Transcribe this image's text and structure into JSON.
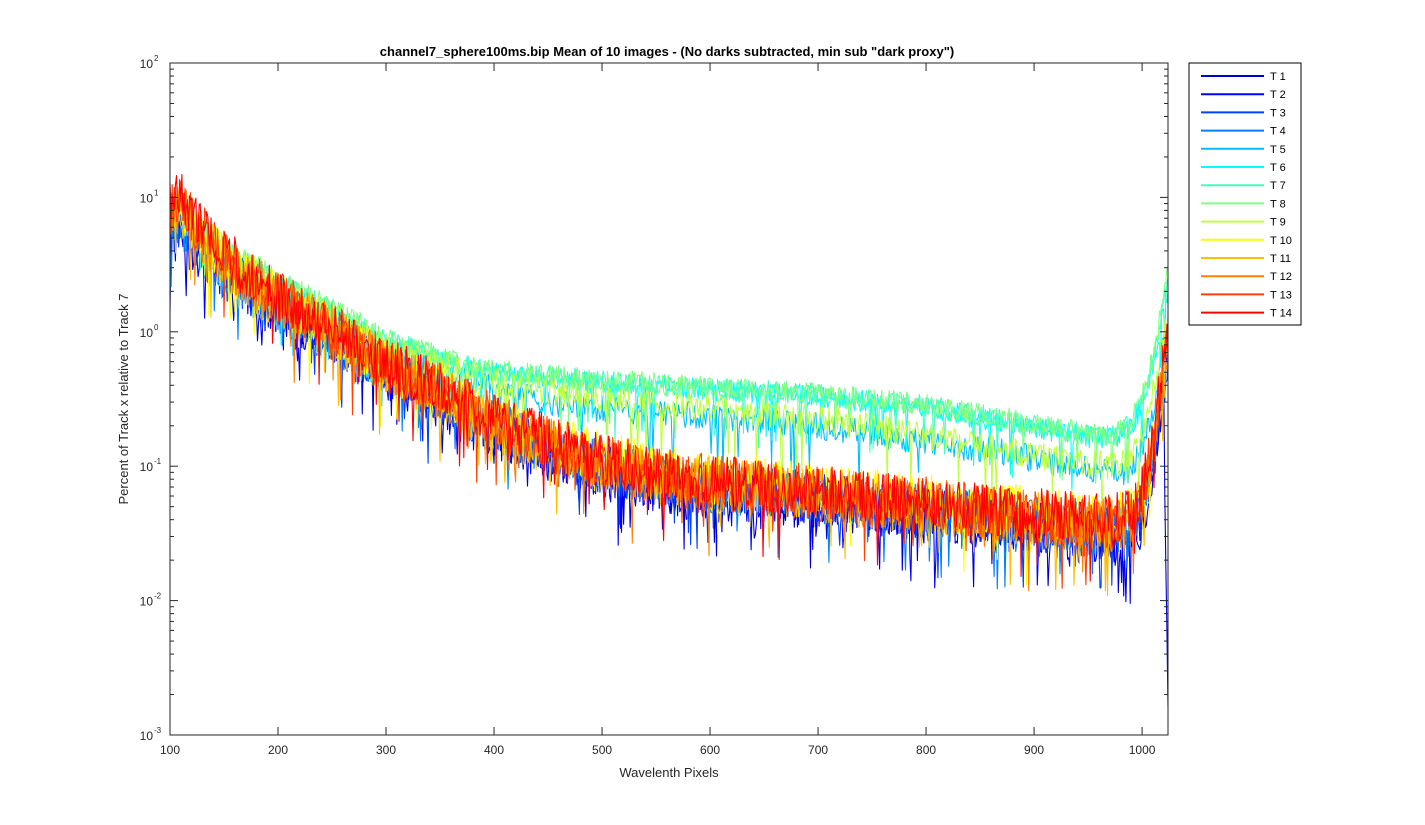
{
  "chart_data": {
    "type": "line",
    "title": "channel7_sphere100ms.bip  Mean of 10 images - (No darks subtracted, min sub \"dark proxy\")",
    "xlabel": "Wavelenth Pixels",
    "ylabel": "Percent of Track x relative to Track 7",
    "xlim": [
      100,
      1024
    ],
    "ylim": [
      0.001,
      100
    ],
    "yscale": "log",
    "grid": false,
    "legend_position": "outside-top-right",
    "x_ticks": [
      100,
      200,
      300,
      400,
      500,
      600,
      700,
      800,
      900,
      1000
    ],
    "y_tick_mantissa": [
      "10",
      "10",
      "10",
      "10",
      "10",
      "10"
    ],
    "y_tick_exponents": [
      "-3",
      "-2",
      "-1",
      "0",
      "1",
      "2"
    ],
    "y_tick_values": [
      0.001,
      0.01,
      0.1,
      1,
      10,
      100
    ],
    "x": [
      100,
      110,
      125,
      150,
      175,
      200,
      250,
      300,
      350,
      400,
      450,
      500,
      550,
      600,
      650,
      700,
      750,
      800,
      850,
      900,
      950,
      975,
      990,
      1000,
      1010,
      1020,
      1024
    ],
    "series": [
      {
        "name": "T 1",
        "color": "#0000d6",
        "noise": 0.3,
        "values": [
          5.0,
          5.5,
          4.0,
          2.6,
          1.9,
          1.4,
          0.85,
          0.48,
          0.3,
          0.17,
          0.12,
          0.09,
          0.072,
          0.062,
          0.058,
          0.052,
          0.047,
          0.043,
          0.038,
          0.033,
          0.03,
          0.029,
          0.032,
          0.04,
          0.09,
          0.35,
          0.0016
        ]
      },
      {
        "name": "T 2",
        "color": "#0000ff",
        "noise": 0.3,
        "values": [
          5.5,
          6.0,
          4.2,
          2.7,
          2.0,
          1.45,
          0.88,
          0.5,
          0.31,
          0.18,
          0.125,
          0.093,
          0.074,
          0.064,
          0.06,
          0.054,
          0.049,
          0.044,
          0.04,
          0.034,
          0.031,
          0.03,
          0.034,
          0.045,
          0.1,
          0.45,
          0.5
        ]
      },
      {
        "name": "T 3",
        "color": "#0040ff",
        "noise": 0.28,
        "values": [
          6.0,
          6.5,
          4.5,
          2.9,
          2.1,
          1.5,
          0.9,
          0.52,
          0.32,
          0.185,
          0.13,
          0.097,
          0.077,
          0.067,
          0.062,
          0.056,
          0.051,
          0.046,
          0.041,
          0.036,
          0.033,
          0.032,
          0.036,
          0.05,
          0.11,
          0.5,
          0.6
        ]
      },
      {
        "name": "T 4",
        "color": "#0080ff",
        "noise": 0.28,
        "values": [
          6.5,
          7.0,
          4.8,
          3.0,
          2.2,
          1.6,
          0.95,
          0.55,
          0.34,
          0.2,
          0.135,
          0.1,
          0.08,
          0.07,
          0.065,
          0.058,
          0.053,
          0.048,
          0.043,
          0.038,
          0.035,
          0.034,
          0.038,
          0.055,
          0.12,
          0.55,
          0.65
        ]
      },
      {
        "name": "T 5",
        "color": "#00bfff",
        "noise": 0.15,
        "values": [
          7.0,
          7.5,
          5.5,
          3.6,
          2.7,
          2.0,
          1.2,
          0.72,
          0.5,
          0.37,
          0.3,
          0.27,
          0.25,
          0.235,
          0.22,
          0.2,
          0.175,
          0.155,
          0.135,
          0.115,
          0.095,
          0.088,
          0.095,
          0.13,
          0.25,
          0.8,
          1.0
        ]
      },
      {
        "name": "T 6",
        "color": "#00ffff",
        "noise": 0.12,
        "values": [
          7.5,
          8.0,
          6.0,
          4.0,
          3.0,
          2.2,
          1.4,
          0.85,
          0.62,
          0.5,
          0.45,
          0.42,
          0.39,
          0.37,
          0.355,
          0.33,
          0.3,
          0.27,
          0.23,
          0.195,
          0.165,
          0.16,
          0.2,
          0.28,
          0.55,
          1.4,
          2.0
        ]
      },
      {
        "name": "T 7",
        "color": "#40ffbf",
        "noise": 0.12,
        "values": [
          8.0,
          8.5,
          6.5,
          4.3,
          3.2,
          2.3,
          1.45,
          0.88,
          0.64,
          0.51,
          0.46,
          0.43,
          0.4,
          0.38,
          0.36,
          0.34,
          0.31,
          0.28,
          0.24,
          0.205,
          0.17,
          0.165,
          0.21,
          0.3,
          0.6,
          1.6,
          2.5
        ]
      },
      {
        "name": "T 8",
        "color": "#80ff80",
        "noise": 0.12,
        "values": [
          8.5,
          9.0,
          7.0,
          4.5,
          3.3,
          2.4,
          1.5,
          0.9,
          0.65,
          0.52,
          0.47,
          0.44,
          0.41,
          0.385,
          0.365,
          0.345,
          0.315,
          0.285,
          0.245,
          0.21,
          0.175,
          0.17,
          0.22,
          0.32,
          0.65,
          1.8,
          2.8
        ]
      },
      {
        "name": "T 9",
        "color": "#bfff40",
        "noise": 0.15,
        "values": [
          8.0,
          8.5,
          6.5,
          4.2,
          3.0,
          2.2,
          1.3,
          0.78,
          0.55,
          0.42,
          0.36,
          0.32,
          0.29,
          0.27,
          0.25,
          0.225,
          0.2,
          0.17,
          0.145,
          0.12,
          0.105,
          0.1,
          0.12,
          0.17,
          0.35,
          1.0,
          1.3
        ]
      },
      {
        "name": "T 10",
        "color": "#ffff00",
        "noise": 0.28,
        "values": [
          7.5,
          8.0,
          5.5,
          3.4,
          2.4,
          1.7,
          1.0,
          0.57,
          0.36,
          0.22,
          0.155,
          0.12,
          0.095,
          0.082,
          0.076,
          0.068,
          0.062,
          0.056,
          0.05,
          0.045,
          0.041,
          0.04,
          0.045,
          0.065,
          0.14,
          0.6,
          0.7
        ]
      },
      {
        "name": "T 11",
        "color": "#ffbf00",
        "noise": 0.3,
        "values": [
          7.5,
          8.5,
          5.5,
          3.3,
          2.3,
          1.65,
          0.98,
          0.55,
          0.34,
          0.2,
          0.14,
          0.105,
          0.083,
          0.072,
          0.066,
          0.06,
          0.055,
          0.05,
          0.045,
          0.04,
          0.037,
          0.036,
          0.04,
          0.058,
          0.12,
          0.55,
          0.6
        ]
      },
      {
        "name": "T 12",
        "color": "#ff8000",
        "noise": 0.3,
        "values": [
          8.0,
          9.0,
          5.8,
          3.5,
          2.4,
          1.7,
          1.0,
          0.56,
          0.35,
          0.21,
          0.145,
          0.108,
          0.085,
          0.074,
          0.068,
          0.062,
          0.056,
          0.051,
          0.046,
          0.041,
          0.038,
          0.037,
          0.042,
          0.06,
          0.13,
          0.58,
          0.65
        ]
      },
      {
        "name": "T 13",
        "color": "#ff4000",
        "noise": 0.3,
        "values": [
          8.5,
          10.0,
          6.0,
          3.6,
          2.5,
          1.75,
          1.02,
          0.57,
          0.36,
          0.215,
          0.148,
          0.11,
          0.087,
          0.076,
          0.07,
          0.063,
          0.057,
          0.052,
          0.047,
          0.042,
          0.039,
          0.038,
          0.043,
          0.062,
          0.14,
          0.62,
          0.7
        ]
      },
      {
        "name": "T 14",
        "color": "#ff0000",
        "noise": 0.28,
        "values": [
          9.0,
          11.0,
          6.5,
          3.8,
          2.6,
          1.8,
          1.05,
          0.6,
          0.38,
          0.225,
          0.155,
          0.115,
          0.09,
          0.078,
          0.072,
          0.065,
          0.059,
          0.054,
          0.049,
          0.044,
          0.041,
          0.04,
          0.046,
          0.066,
          0.15,
          0.68,
          0.75
        ]
      }
    ]
  }
}
